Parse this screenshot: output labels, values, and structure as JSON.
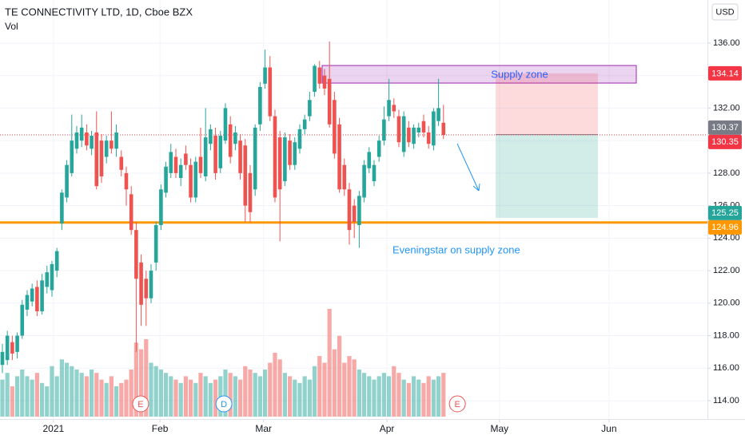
{
  "chart_data": {
    "type": "candlestick",
    "title": "TE CONNECTIVITY LTD, 1D, Cboe BZX",
    "volume_title": "Vol",
    "currency": "USD",
    "up_color": "#26a69a",
    "down_color": "#ef5350",
    "x": [
      0,
      1,
      2,
      3,
      4,
      5,
      6,
      7,
      8,
      9,
      10,
      11,
      12,
      13,
      14,
      15,
      16,
      17,
      18,
      19,
      20,
      21,
      22,
      23,
      24,
      25,
      26,
      27,
      28,
      29,
      30,
      31,
      32,
      33,
      34,
      35,
      36,
      37,
      38,
      39,
      40,
      41,
      42,
      43,
      44,
      45,
      46,
      47,
      48,
      49,
      50,
      51,
      52,
      53,
      54,
      55,
      56,
      57,
      58,
      59,
      60,
      61,
      62,
      63,
      64,
      65,
      66,
      67,
      68,
      69,
      70,
      71,
      72,
      73,
      74,
      75,
      76,
      77,
      78,
      79,
      80,
      81,
      82,
      83,
      84,
      85,
      86,
      87,
      88,
      89
    ],
    "open": [
      116.2,
      116.5,
      117.6,
      117.0,
      118.0,
      119.6,
      120.1,
      121.0,
      119.5,
      121.0,
      120.8,
      122.0,
      124.9,
      126.5,
      128.0,
      129.5,
      130.0,
      130.5,
      129.5,
      130.5,
      130.0,
      129.0,
      130.0,
      129.5,
      129.0,
      128.0,
      126.7,
      124.5,
      122.5,
      121.5,
      120.3,
      122.5,
      124.8,
      126.8,
      128.0,
      129.0,
      127.7,
      129.2,
      128.5,
      126.5,
      129.0,
      127.8,
      129.8,
      130.3,
      128.3,
      130.0,
      131.0,
      129.8,
      130.0,
      129.7,
      128.0,
      127.0,
      131.0,
      133.5,
      134.5,
      131.5,
      130.2,
      127.5,
      130.0,
      128.5,
      129.5,
      130.7,
      131.5,
      133.0,
      134.5,
      134.0,
      133.8,
      132.5,
      131.0,
      128.5,
      127.0,
      126.0,
      124.8,
      126.5,
      128.3,
      127.5,
      129.0,
      130.0,
      131.5,
      132.2,
      131.5,
      129.3,
      130.8,
      129.8,
      130.5,
      131.2,
      130.5,
      129.7,
      131.2,
      131.1
    ],
    "high": [
      117.5,
      118.3,
      118.0,
      118.2,
      120.2,
      120.8,
      121.2,
      121.4,
      121.8,
      122.3,
      122.6,
      123.4,
      127.0,
      128.8,
      131.6,
      130.9,
      131.6,
      131.0,
      130.6,
      131.8,
      130.4,
      130.3,
      131.8,
      131.0,
      129.4,
      128.4,
      127.2,
      125.0,
      123.0,
      122.0,
      122.4,
      125.0,
      127.3,
      128.7,
      129.8,
      129.5,
      128.9,
      129.7,
      128.9,
      129.0,
      130.8,
      132.0,
      131.0,
      130.8,
      130.6,
      132.3,
      131.5,
      130.9,
      130.4,
      130.1,
      128.5,
      131.0,
      133.6,
      135.6,
      135.2,
      131.9,
      130.6,
      130.5,
      130.4,
      130.2,
      131.0,
      131.6,
      133.0,
      134.7,
      134.9,
      134.4,
      136.1,
      133.0,
      131.4,
      128.9,
      127.4,
      126.4,
      126.9,
      128.8,
      129.6,
      128.8,
      130.3,
      132.1,
      133.8,
      132.6,
      131.9,
      131.8,
      131.2,
      131.0,
      131.1,
      131.6,
      130.9,
      132.0,
      133.8,
      132.2
    ],
    "low": [
      115.7,
      116.2,
      116.5,
      116.6,
      117.8,
      119.2,
      119.8,
      119.2,
      119.3,
      120.6,
      120.4,
      121.6,
      124.5,
      126.2,
      127.8,
      129.2,
      129.6,
      129.4,
      129.1,
      127.0,
      127.4,
      128.6,
      129.2,
      129.0,
      127.8,
      126.0,
      124.2,
      117.0,
      118.6,
      118.6,
      120.0,
      122.0,
      124.5,
      126.5,
      127.7,
      127.7,
      127.2,
      128.2,
      126.2,
      126.2,
      127.7,
      127.5,
      129.4,
      127.6,
      128.0,
      129.8,
      128.6,
      129.4,
      127.6,
      125.0,
      125.0,
      126.6,
      130.6,
      133.2,
      131.2,
      126.2,
      123.8,
      127.2,
      128.2,
      128.2,
      129.2,
      130.4,
      131.2,
      132.7,
      133.2,
      132.8,
      130.8,
      128.9,
      126.8,
      126.6,
      123.6,
      124.0,
      123.4,
      126.2,
      128.0,
      127.2,
      128.7,
      129.7,
      131.2,
      131.4,
      129.6,
      129.0,
      129.6,
      129.5,
      130.2,
      130.2,
      129.5,
      129.4,
      130.9,
      130.1
    ],
    "close": [
      117.0,
      118.0,
      116.9,
      118.0,
      119.9,
      120.5,
      120.9,
      119.5,
      121.4,
      121.9,
      122.4,
      123.2,
      126.8,
      128.5,
      130.0,
      130.5,
      130.8,
      129.7,
      130.3,
      127.2,
      127.8,
      130.0,
      129.5,
      130.5,
      128.2,
      127.0,
      124.5,
      121.5,
      119.9,
      120.3,
      122.0,
      124.8,
      127.0,
      128.4,
      129.3,
      128.0,
      128.5,
      128.5,
      126.5,
      128.7,
      128.0,
      130.2,
      130.7,
      128.0,
      130.3,
      132.0,
      129.0,
      130.5,
      128.0,
      126.0,
      125.6,
      130.8,
      133.3,
      134.5,
      131.5,
      126.5,
      127.0,
      130.2,
      128.5,
      129.9,
      130.7,
      131.3,
      132.5,
      134.6,
      133.5,
      133.2,
      131.0,
      129.2,
      127.0,
      127.0,
      124.5,
      125.0,
      126.6,
      128.5,
      129.3,
      128.5,
      130.0,
      131.3,
      132.5,
      131.8,
      129.9,
      131.5,
      129.9,
      130.8,
      130.8,
      130.5,
      129.8,
      131.8,
      132.0,
      130.35
    ],
    "volume": [
      1.1,
      1.3,
      0.9,
      1.2,
      1.4,
      1.2,
      1.1,
      1.3,
      1.0,
      0.9,
      1.5,
      1.2,
      1.7,
      1.6,
      1.5,
      1.4,
      1.3,
      1.2,
      1.4,
      1.3,
      1.1,
      1.0,
      1.2,
      0.9,
      1.0,
      1.1,
      1.4,
      2.2,
      2.0,
      2.3,
      1.6,
      1.5,
      1.4,
      1.3,
      1.2,
      1.1,
      1.0,
      1.2,
      1.1,
      1.0,
      1.3,
      1.2,
      1.0,
      1.1,
      1.2,
      1.4,
      1.3,
      1.2,
      1.1,
      1.5,
      1.4,
      1.3,
      1.2,
      1.4,
      1.6,
      1.9,
      1.7,
      1.3,
      1.2,
      1.1,
      1.0,
      1.2,
      1.1,
      1.5,
      1.8,
      1.6,
      3.2,
      2.0,
      2.4,
      1.6,
      1.8,
      1.7,
      1.4,
      1.3,
      1.2,
      1.1,
      1.2,
      1.3,
      1.2,
      1.5,
      1.3,
      1.1,
      1.0,
      1.2,
      1.1,
      1.0,
      1.2,
      1.1,
      1.2,
      1.3
    ],
    "xlim": [
      -0.48,
      142.26
    ],
    "xticks": [
      {
        "value": 10.3,
        "label": "2021"
      },
      {
        "value": 31.8,
        "label": "Feb"
      },
      {
        "value": 52.7,
        "label": "Mar"
      },
      {
        "value": 77.6,
        "label": "Apr"
      },
      {
        "value": 100.3,
        "label": "May"
      },
      {
        "value": 122.4,
        "label": "Jun"
      }
    ],
    "ylim": [
      112.87,
      138.65
    ],
    "yticks": [
      {
        "value": 114,
        "label": "114.00"
      },
      {
        "value": 116,
        "label": "116.00"
      },
      {
        "value": 118,
        "label": "118.00"
      },
      {
        "value": 120,
        "label": "120.00"
      },
      {
        "value": 122,
        "label": "122.00"
      },
      {
        "value": 124,
        "label": "124.00"
      },
      {
        "value": 126,
        "label": "126.00"
      },
      {
        "value": 128,
        "label": "128.00"
      },
      {
        "value": 130,
        "label": "130.00"
      },
      {
        "value": 132,
        "label": "132.00"
      },
      {
        "value": 134,
        "label": "134.00"
      },
      {
        "value": 136,
        "label": "136.00"
      }
    ],
    "grid": true,
    "supply_zone": {
      "label": "Supply zone",
      "top": 134.62,
      "bottom": 133.54,
      "color": "#9c27b0"
    },
    "position": {
      "stop": {
        "value": 134.14,
        "color": "#f23645"
      },
      "entry": {
        "value": 130.37,
        "color": "#787b86"
      },
      "target": {
        "value": 125.25,
        "color": "#26a69a"
      }
    },
    "lines": [
      {
        "value": 130.35,
        "color": "#f23645",
        "style": "dotted"
      },
      {
        "value": 124.96,
        "color": "#ff9800",
        "style": "solid"
      }
    ],
    "annotation": "Eveningstar on supply zone",
    "events": [
      {
        "x": 27.9,
        "label": "E",
        "color": "#ef5350"
      },
      {
        "x": 44.7,
        "label": "D",
        "color": "#2196f3"
      },
      {
        "x": 91.8,
        "label": "E",
        "color": "#ef5350"
      }
    ]
  }
}
